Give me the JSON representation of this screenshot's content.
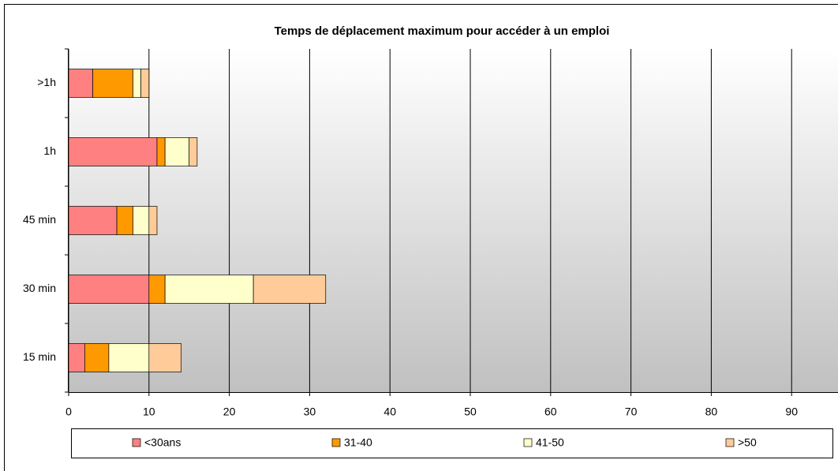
{
  "chart_data": {
    "type": "stacked-barh",
    "title": "Temps de déplacement maximum pour accéder à un emploi",
    "categories": [
      "15 min",
      "30 min",
      "45 min",
      "1h",
      ">1h"
    ],
    "series": [
      {
        "name": "<30ans",
        "color": "#ff8080",
        "values": [
          2,
          10,
          6,
          11,
          3
        ]
      },
      {
        "name": "31-40",
        "color": "#ff9900",
        "values": [
          3,
          2,
          2,
          1,
          5
        ]
      },
      {
        "name": "41-50",
        "color": "#ffffcc",
        "values": [
          5,
          11,
          2,
          3,
          1
        ]
      },
      {
        "name": ">50",
        "color": "#ffcc99",
        "values": [
          4,
          9,
          1,
          1,
          1
        ]
      }
    ],
    "xlim": [
      0,
      100
    ],
    "xticks": [
      0,
      10,
      20,
      30,
      40,
      50,
      60,
      70,
      80,
      90
    ],
    "grid": true,
    "legend": "bottom"
  }
}
